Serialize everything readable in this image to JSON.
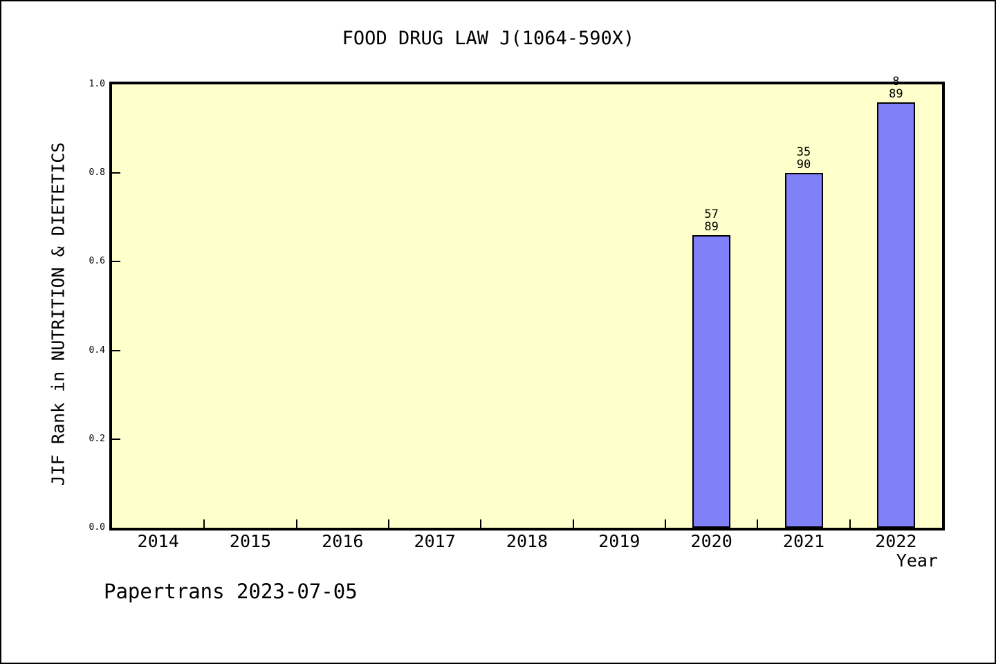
{
  "title": "FOOD DRUG LAW J(1064-590X)",
  "footer": "Papertrans 2023-07-05",
  "chart_data": {
    "type": "bar",
    "title": "FOOD DRUG LAW J(1064-590X)",
    "xlabel": "Year",
    "ylabel": "JIF Rank in NUTRITION & DIETETICS",
    "categories": [
      "2014",
      "2015",
      "2016",
      "2017",
      "2018",
      "2019",
      "2020",
      "2021",
      "2022"
    ],
    "values": [
      null,
      null,
      null,
      null,
      null,
      null,
      0.66,
      0.8,
      0.96
    ],
    "bar_value_labels": [
      null,
      null,
      null,
      null,
      null,
      null,
      "57/89",
      "35/90",
      "8/89"
    ],
    "bars": [
      {
        "category": "2020",
        "numerator": "57",
        "denominator": "89",
        "value": 0.66
      },
      {
        "category": "2021",
        "numerator": "35",
        "denominator": "90",
        "value": 0.8
      },
      {
        "category": "2022",
        "numerator": "8",
        "denominator": "89",
        "value": 0.96
      }
    ],
    "ylim": [
      0.0,
      1.0
    ],
    "yticks": [
      "1.0",
      "0.8",
      "0.6",
      "0.4",
      "0.2",
      "0.0"
    ],
    "grid": false,
    "legend": null,
    "plot_bg_color": "#FFFFCC",
    "bar_color": "#8080F8",
    "bar_border_color": "#000000"
  }
}
